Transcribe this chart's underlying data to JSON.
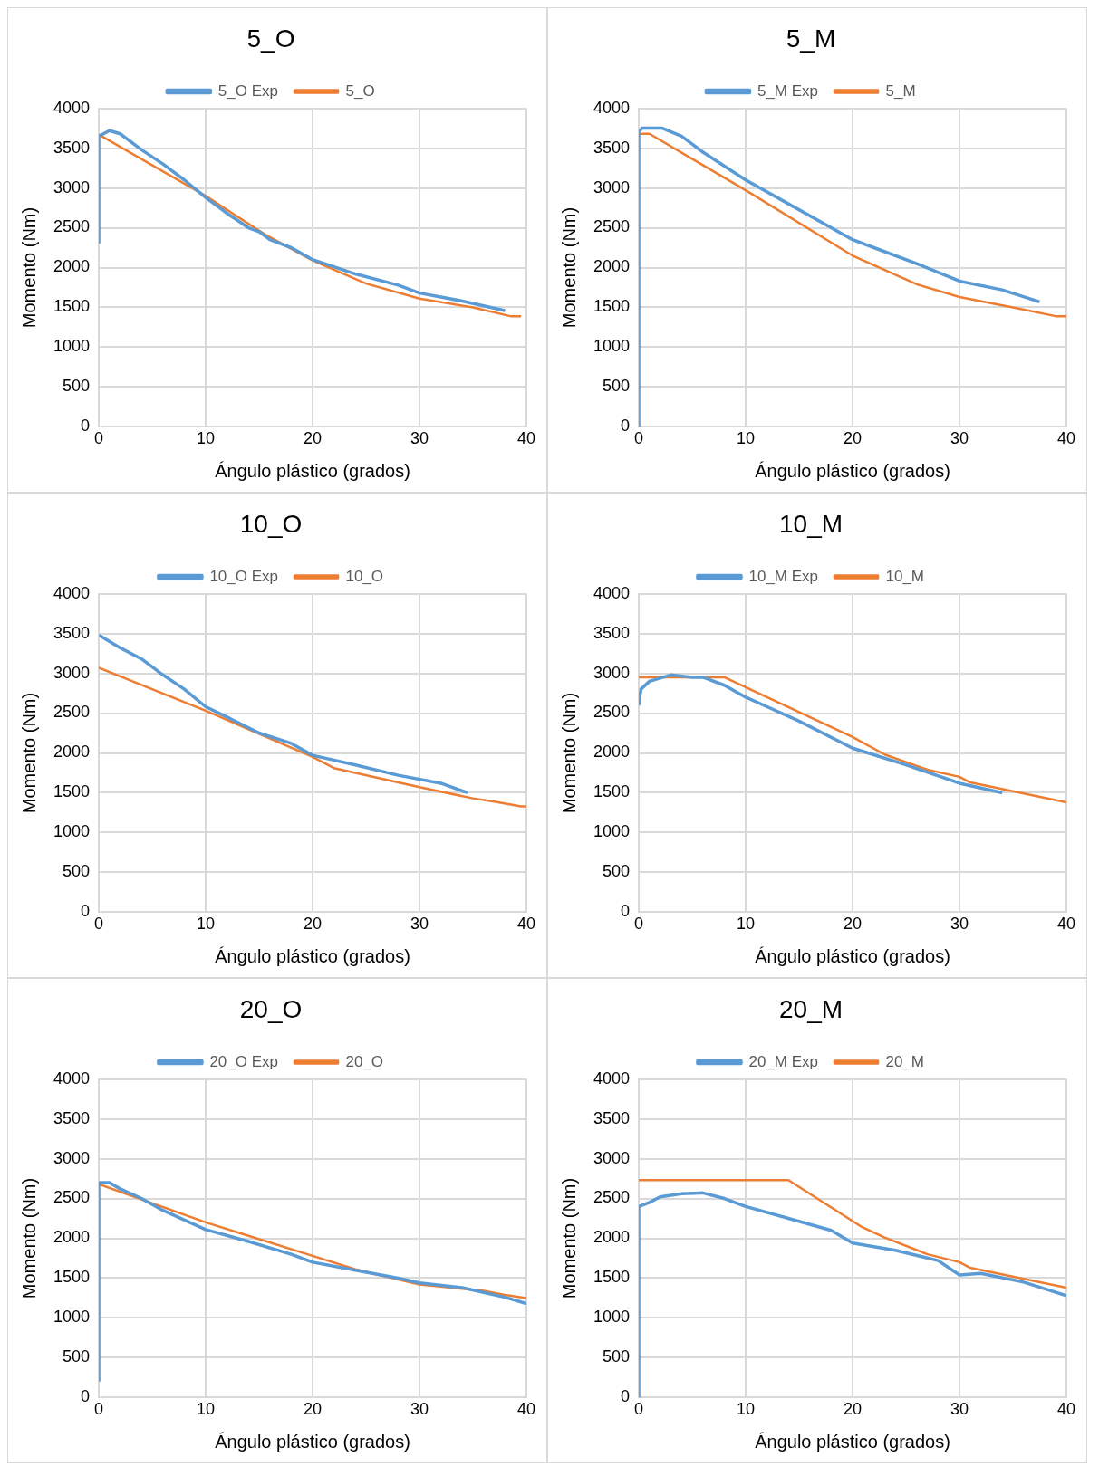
{
  "chart_data": [
    {
      "type": "line",
      "title": "5_O",
      "xlabel": "Ángulo plástico (grados)",
      "ylabel": "Momento (Nm)",
      "xlim": [
        0,
        40
      ],
      "xticks": [
        0,
        10,
        20,
        30,
        40
      ],
      "ylim": [
        0,
        4000
      ],
      "yticks": [
        0,
        500,
        1000,
        1500,
        2000,
        2500,
        3000,
        3500,
        4000
      ],
      "grid": true,
      "legend": "top",
      "marker": "none",
      "line_style": "solid",
      "series": [
        {
          "name": "5_O Exp",
          "color": "#5b9bd5",
          "x": [
            0,
            0,
            1,
            2,
            4,
            6,
            8,
            10,
            12,
            14,
            15,
            16,
            18,
            20,
            24,
            28,
            30,
            34,
            38
          ],
          "values": [
            2300,
            3650,
            3720,
            3680,
            3480,
            3300,
            3100,
            2880,
            2680,
            2500,
            2450,
            2350,
            2250,
            2100,
            1920,
            1780,
            1680,
            1580,
            1460
          ]
        },
        {
          "name": "5_O",
          "color": "#ed7d31",
          "x": [
            0,
            10,
            15.5,
            20,
            25,
            30,
            35,
            38.5,
            39.5
          ],
          "values": [
            3670,
            2900,
            2420,
            2090,
            1800,
            1610,
            1500,
            1390,
            1390
          ]
        }
      ]
    },
    {
      "type": "line",
      "title": "5_M",
      "xlabel": "Ángulo plástico (grados)",
      "ylabel": "Momento (Nm)",
      "xlim": [
        0,
        40
      ],
      "xticks": [
        0,
        10,
        20,
        30,
        40
      ],
      "ylim": [
        0,
        4000
      ],
      "yticks": [
        0,
        500,
        1000,
        1500,
        2000,
        2500,
        3000,
        3500,
        4000
      ],
      "grid": true,
      "legend": "top",
      "marker": "none",
      "line_style": "solid",
      "series": [
        {
          "name": "5_M Exp",
          "color": "#5b9bd5",
          "x": [
            0,
            0,
            0.3,
            2.2,
            4,
            6,
            10,
            14,
            18,
            20,
            22,
            26,
            30,
            34,
            37.5
          ],
          "values": [
            0,
            3700,
            3750,
            3750,
            3650,
            3450,
            3100,
            2800,
            2500,
            2350,
            2250,
            2050,
            1830,
            1720,
            1570
          ]
        },
        {
          "name": "5_M",
          "color": "#ed7d31",
          "x": [
            0,
            1,
            10,
            20,
            21,
            26,
            30,
            35,
            39,
            40
          ],
          "values": [
            3680,
            3680,
            2970,
            2150,
            2090,
            1790,
            1630,
            1500,
            1390,
            1390
          ]
        }
      ]
    },
    {
      "type": "line",
      "title": "10_O",
      "xlabel": "Ángulo plástico (grados)",
      "ylabel": "Momento (Nm)",
      "xlim": [
        0,
        40
      ],
      "xticks": [
        0,
        10,
        20,
        30,
        40
      ],
      "ylim": [
        0,
        4000
      ],
      "yticks": [
        0,
        500,
        1000,
        1500,
        2000,
        2500,
        3000,
        3500,
        4000
      ],
      "grid": true,
      "legend": "top",
      "marker": "none",
      "line_style": "solid",
      "series": [
        {
          "name": "10_O Exp",
          "color": "#5b9bd5",
          "x": [
            0,
            2,
            4,
            6,
            8,
            10,
            12,
            15,
            18,
            20,
            24,
            28,
            32,
            34.5
          ],
          "values": [
            3480,
            3320,
            3180,
            2980,
            2800,
            2580,
            2450,
            2250,
            2120,
            1970,
            1850,
            1720,
            1620,
            1500
          ]
        },
        {
          "name": "10_O",
          "color": "#ed7d31",
          "x": [
            0,
            10,
            20,
            22,
            30,
            35,
            37,
            39.5,
            40
          ],
          "values": [
            3070,
            2530,
            1950,
            1810,
            1570,
            1430,
            1390,
            1330,
            1330
          ]
        }
      ]
    },
    {
      "type": "line",
      "title": "10_M",
      "xlabel": "Ángulo plástico (grados)",
      "ylabel": "Momento (Nm)",
      "xlim": [
        0,
        40
      ],
      "xticks": [
        0,
        10,
        20,
        30,
        40
      ],
      "ylim": [
        0,
        4000
      ],
      "yticks": [
        0,
        500,
        1000,
        1500,
        2000,
        2500,
        3000,
        3500,
        4000
      ],
      "grid": true,
      "legend": "top",
      "marker": "none",
      "line_style": "solid",
      "series": [
        {
          "name": "10_M Exp",
          "color": "#5b9bd5",
          "x": [
            0,
            0.2,
            1,
            3,
            5,
            6,
            8,
            10,
            12,
            15,
            20,
            25,
            30,
            32,
            34
          ],
          "values": [
            2600,
            2800,
            2900,
            2980,
            2950,
            2950,
            2850,
            2700,
            2580,
            2400,
            2060,
            1850,
            1620,
            1560,
            1500
          ]
        },
        {
          "name": "10_M",
          "color": "#ed7d31",
          "x": [
            0,
            8,
            20,
            23,
            27,
            30,
            31,
            40
          ],
          "values": [
            2950,
            2950,
            2200,
            1980,
            1790,
            1700,
            1630,
            1380
          ]
        }
      ]
    },
    {
      "type": "line",
      "title": "20_O",
      "xlabel": "Ángulo plástico (grados)",
      "ylabel": "Momento (Nm)",
      "xlim": [
        0,
        40
      ],
      "xticks": [
        0,
        10,
        20,
        30,
        40
      ],
      "ylim": [
        0,
        4000
      ],
      "yticks": [
        0,
        500,
        1000,
        1500,
        2000,
        2500,
        3000,
        3500,
        4000
      ],
      "grid": true,
      "legend": "top",
      "marker": "none",
      "line_style": "solid",
      "series": [
        {
          "name": "20_O Exp",
          "color": "#5b9bd5",
          "x": [
            0,
            0,
            1,
            2,
            4,
            6,
            10,
            14,
            18,
            20,
            24,
            28,
            30,
            34,
            38,
            40
          ],
          "values": [
            200,
            2700,
            2700,
            2620,
            2500,
            2350,
            2110,
            1960,
            1800,
            1700,
            1600,
            1500,
            1440,
            1380,
            1260,
            1180
          ]
        },
        {
          "name": "20_O",
          "color": "#ed7d31",
          "x": [
            0,
            10,
            20,
            24,
            30,
            33,
            36,
            38,
            40
          ],
          "values": [
            2680,
            2200,
            1780,
            1610,
            1420,
            1380,
            1340,
            1290,
            1250
          ]
        }
      ]
    },
    {
      "type": "line",
      "title": "20_M",
      "xlabel": "Ángulo plástico (grados)",
      "ylabel": "Momento (Nm)",
      "xlim": [
        0,
        40
      ],
      "xticks": [
        0,
        10,
        20,
        30,
        40
      ],
      "ylim": [
        0,
        4000
      ],
      "yticks": [
        0,
        500,
        1000,
        1500,
        2000,
        2500,
        3000,
        3500,
        4000
      ],
      "grid": true,
      "legend": "top",
      "marker": "none",
      "line_style": "solid",
      "series": [
        {
          "name": "20_M Exp",
          "color": "#5b9bd5",
          "x": [
            0,
            0,
            1,
            2,
            4,
            6,
            8,
            10,
            14,
            18,
            20,
            24,
            28,
            30,
            32,
            36,
            40
          ],
          "values": [
            0,
            2400,
            2450,
            2520,
            2560,
            2570,
            2500,
            2400,
            2250,
            2100,
            1940,
            1850,
            1720,
            1540,
            1560,
            1450,
            1280
          ]
        },
        {
          "name": "20_M",
          "color": "#ed7d31",
          "x": [
            0,
            14,
            20.9,
            23,
            27,
            30,
            31,
            40
          ],
          "values": [
            2730,
            2730,
            2140,
            2010,
            1800,
            1700,
            1630,
            1380
          ]
        }
      ]
    }
  ]
}
